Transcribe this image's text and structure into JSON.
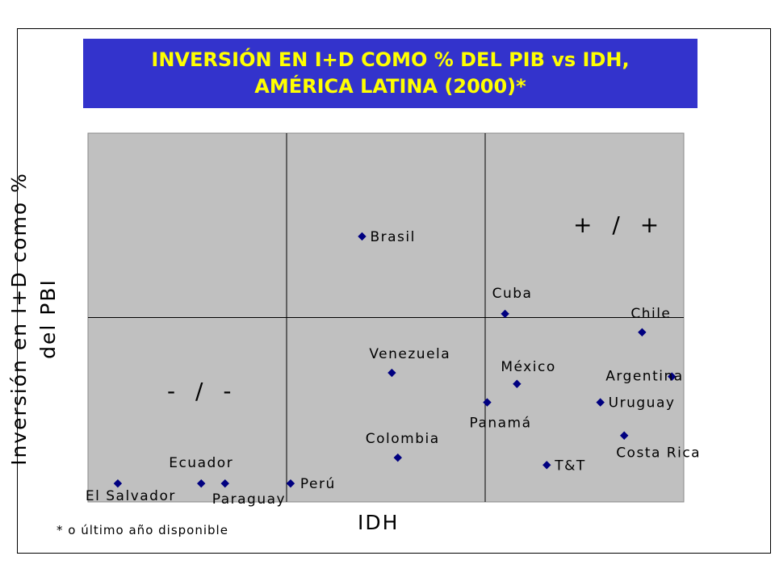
{
  "title": {
    "line1": "INVERSIÓN EN I+D COMO % DEL PIB vs IDH,",
    "line2": "AMÉRICA LATINA (2000)*"
  },
  "footnote": "* o último año disponible",
  "quadrant_labels": {
    "top_right": "+ / +",
    "bottom_left": "- / -"
  },
  "chart_data": {
    "type": "scatter",
    "title": "INVERSIÓN EN I+D COMO % DEL PIB vs IDH, AMÉRICA LATINA (2000)*",
    "xlabel": "IDH",
    "ylabel": [
      "Inversión en I+D como %",
      "del PBI"
    ],
    "marker_color": "#000080",
    "plot_background": "#c0c0c0",
    "axis_ticks_shown": false,
    "quadrant_dividers": "vertical lines at one-third and two-thirds of IDH range; horizontal line at mid of investment range",
    "points": [
      {
        "name": "Brasil",
        "x": 0.46,
        "y": 0.72
      },
      {
        "name": "Cuba",
        "x": 0.7,
        "y": 0.51
      },
      {
        "name": "Chile",
        "x": 0.93,
        "y": 0.46
      },
      {
        "name": "Venezuela",
        "x": 0.51,
        "y": 0.35
      },
      {
        "name": "México",
        "x": 0.72,
        "y": 0.32
      },
      {
        "name": "Argentina",
        "x": 0.98,
        "y": 0.34
      },
      {
        "name": "Uruguay",
        "x": 0.86,
        "y": 0.27
      },
      {
        "name": "Panamá",
        "x": 0.67,
        "y": 0.27
      },
      {
        "name": "Costa Rica",
        "x": 0.9,
        "y": 0.18
      },
      {
        "name": "Colombia",
        "x": 0.52,
        "y": 0.12
      },
      {
        "name": "T&T",
        "x": 0.77,
        "y": 0.1
      },
      {
        "name": "Ecuador",
        "x": 0.19,
        "y": 0.05
      },
      {
        "name": "Paraguay",
        "x": 0.23,
        "y": 0.05
      },
      {
        "name": "Perú",
        "x": 0.34,
        "y": 0.05
      },
      {
        "name": "El Salvador",
        "x": 0.05,
        "y": 0.05
      }
    ]
  }
}
